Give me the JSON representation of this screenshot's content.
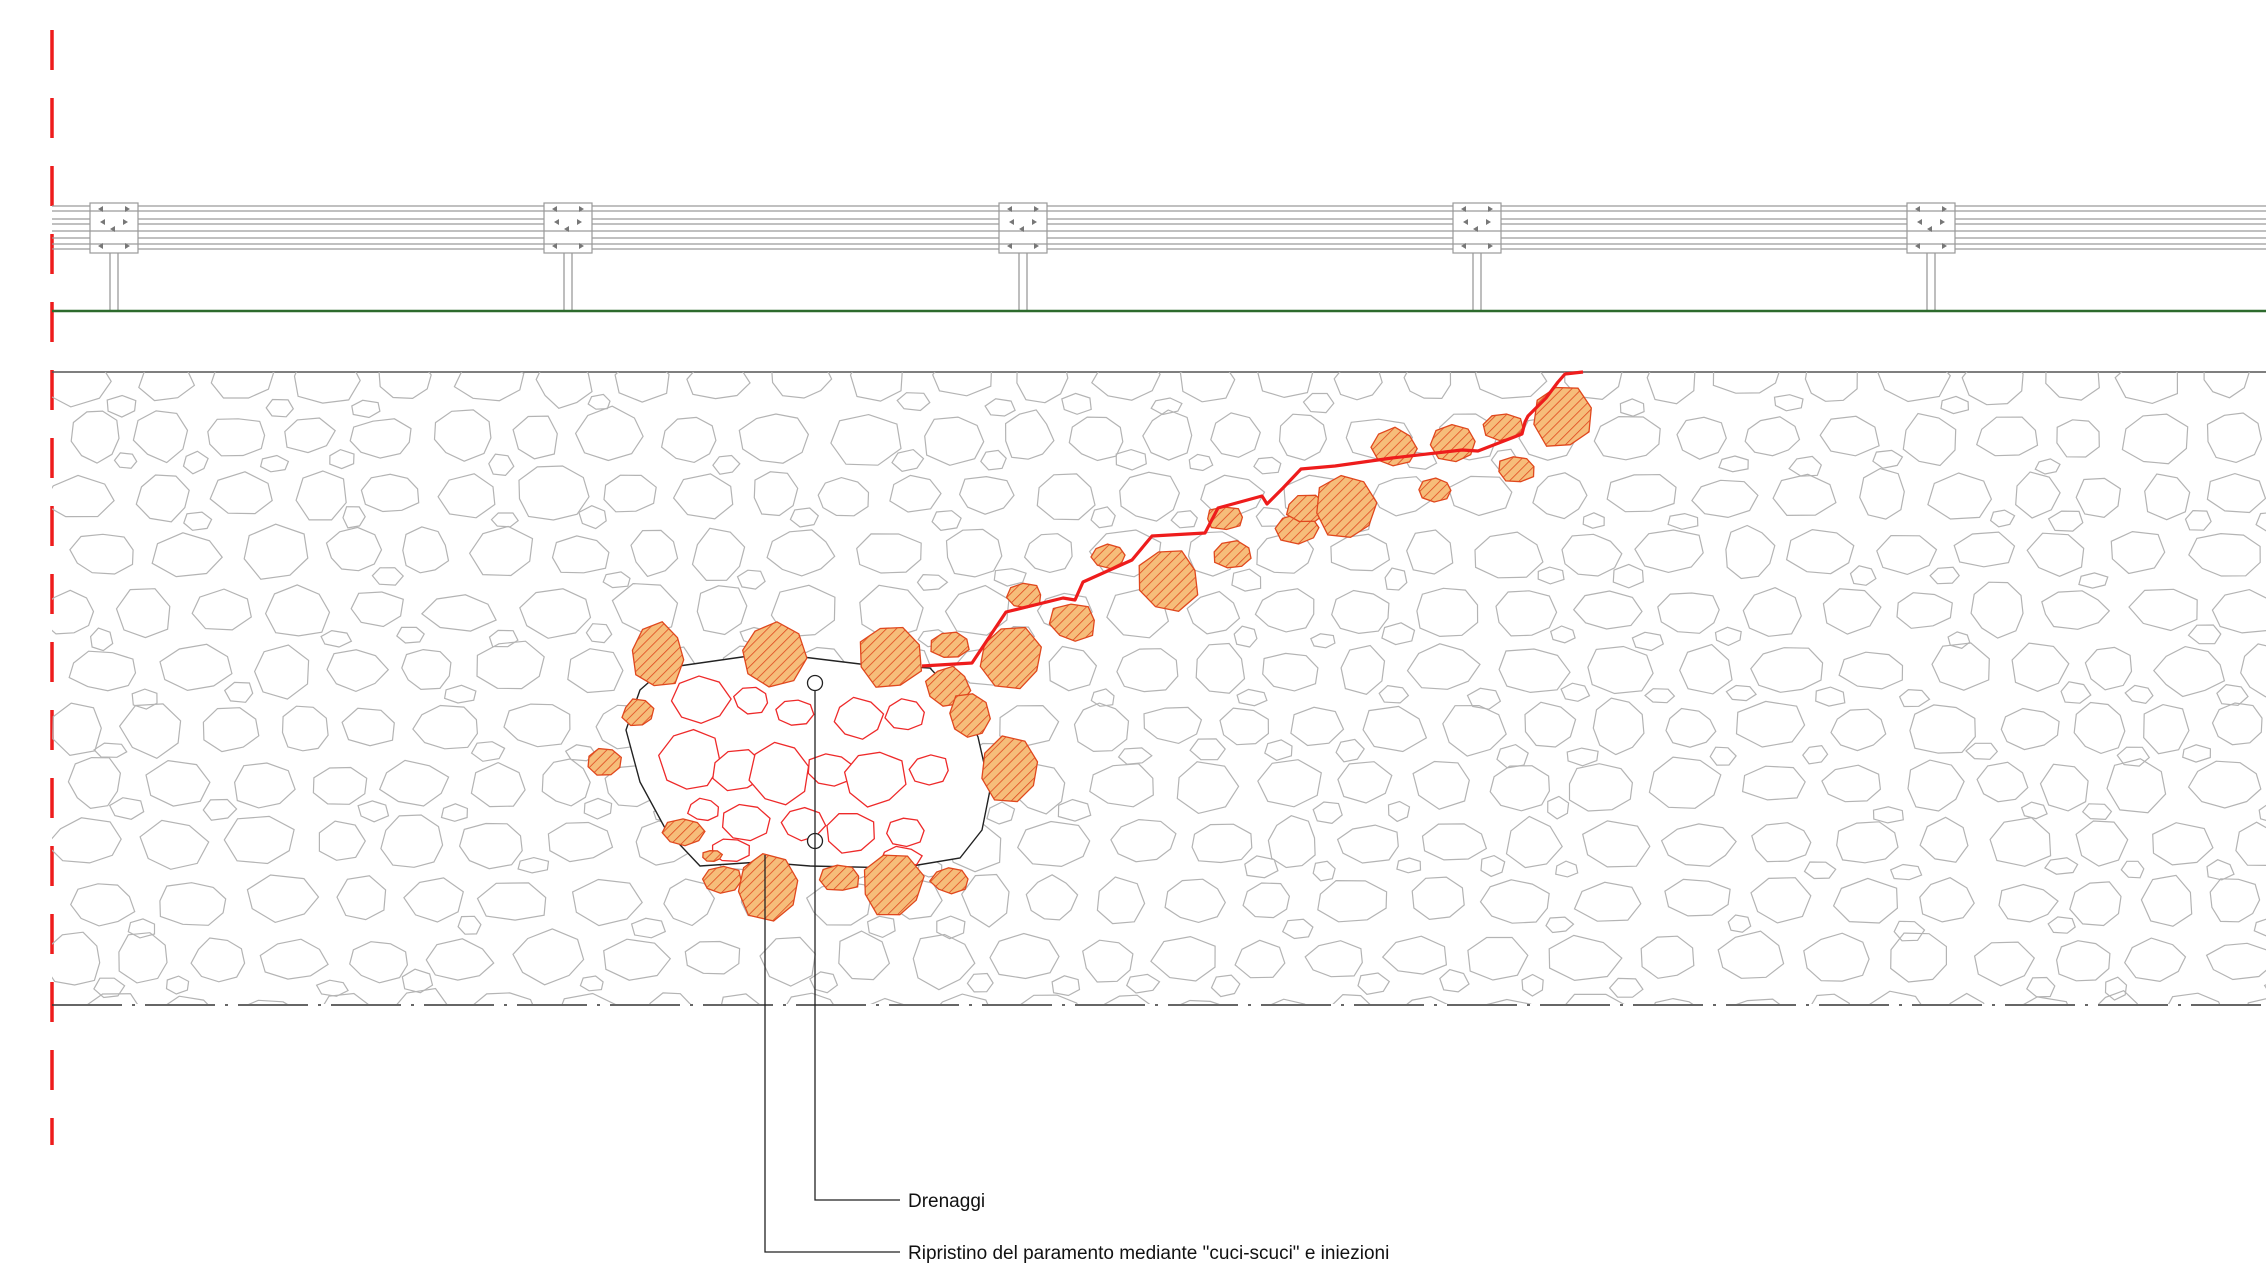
{
  "annotations": {
    "drains": "Drenaggi",
    "repair": "Ripristino del paramento mediante \"cuci-scuci\" e iniezioni"
  },
  "colors": {
    "stone_outline": "#b4b4b4",
    "damaged_stone_fill": "#f4b168",
    "damaged_stone_hatch": "#e0481e",
    "crack": "#ee1c1c",
    "reconstructed_stone": "#ee2a2a",
    "axis_line": "#ee1c1c",
    "road_edge": "#2d6a2d",
    "guardrail": "#9a9a9a",
    "leader_line": "#222222"
  },
  "elements": {
    "guardrail_posts": 5,
    "drain_holes": 2
  }
}
